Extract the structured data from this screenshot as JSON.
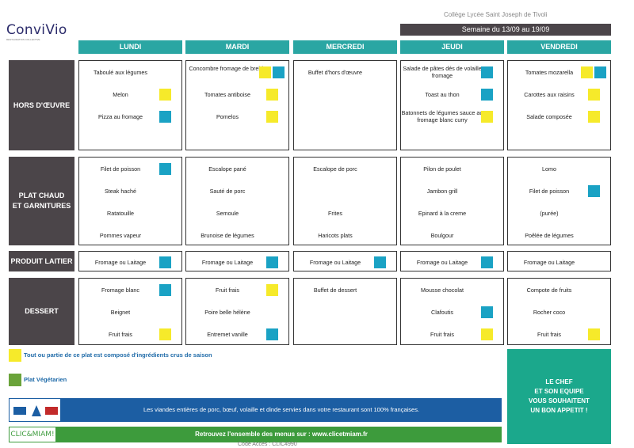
{
  "header": {
    "logo": "ConviVio",
    "logo_sub": "RESTAURATION COLLECTIVE",
    "school": "Collège Lycée Saint Joseph de Tivoli",
    "week": "Semaine du 13/09 au 19/09"
  },
  "days": [
    "LUNDI",
    "MARDI",
    "MERCREDI",
    "JEUDI",
    "VENDREDI"
  ],
  "categories": {
    "hors": "HORS D'ŒUVRE",
    "plat_line1": "PLAT CHAUD",
    "plat_line2": "ET GARNITURES",
    "laitier": "PRODUIT LAITIER",
    "dessert": "DESSERT"
  },
  "menu": {
    "hors": [
      [
        {
          "text": "Taboulé aux légumes"
        },
        {
          "text": "Melon",
          "icon": "sun"
        },
        {
          "text": "Pizza au fromage",
          "icon": "veg-pot"
        }
      ],
      [
        {
          "text": "Concombre fromage de brebis",
          "icon": "sun+veg-pot"
        },
        {
          "text": "Tomates antiboise",
          "icon": "sun"
        },
        {
          "text": "Pomelos",
          "icon": "sun"
        }
      ],
      [
        {
          "text": "Buffet d'hors d'œuvre"
        }
      ],
      [
        {
          "text": "Salade de pâtes dés de volaille fromage",
          "icon": "veg-pot"
        },
        {
          "text": "Toast au thon",
          "icon": "fish"
        },
        {
          "text": "Batonnets de légumes sauce au fromage blanc curry",
          "icon": "sun"
        }
      ],
      [
        {
          "text": "Tomates mozarella",
          "icon": "sun+veg-pot"
        },
        {
          "text": "Carottes aux raisins",
          "icon": "sun"
        },
        {
          "text": "Salade composée",
          "icon": "sun"
        }
      ]
    ],
    "plat": [
      [
        {
          "text": "Filet de poisson",
          "icon": "fish"
        },
        {
          "text": "Steak haché"
        },
        {
          "text": "Ratatouille"
        },
        {
          "text": "Pommes vapeur"
        }
      ],
      [
        {
          "text": "Escalope pané"
        },
        {
          "text": "Sauté de porc"
        },
        {
          "text": "Semoule"
        },
        {
          "text": "Brunoise de légumes"
        }
      ],
      [
        {
          "text": "Escalope de porc"
        },
        {
          "text": ""
        },
        {
          "text": "Frites"
        },
        {
          "text": "Haricots plats"
        }
      ],
      [
        {
          "text": "Pilon de poulet"
        },
        {
          "text": "Jambon grill"
        },
        {
          "text": "Epinard à la creme"
        },
        {
          "text": "Boulgour"
        }
      ],
      [
        {
          "text": "Lomo"
        },
        {
          "text": "Filet de poisson",
          "icon": "fish"
        },
        {
          "text": "(purée)"
        },
        {
          "text": "Poêlée de légumes"
        }
      ]
    ],
    "laitier": [
      [
        {
          "text": "Fromage ou Laitage",
          "icon": "veg-pot"
        }
      ],
      [
        {
          "text": "Fromage ou Laitage",
          "icon": "veg-pot"
        }
      ],
      [
        {
          "text": "Fromage ou Laitage",
          "icon": "veg-pot"
        }
      ],
      [
        {
          "text": "Fromage ou Laitage",
          "icon": "veg-pot"
        }
      ],
      [
        {
          "text": "Fromage ou Laitage"
        }
      ]
    ],
    "dessert": [
      [
        {
          "text": "Fromage blanc",
          "icon": "veg-pot"
        },
        {
          "text": "Beignet"
        },
        {
          "text": "Fruit frais",
          "icon": "sun"
        }
      ],
      [
        {
          "text": "Fruit frais",
          "icon": "sun"
        },
        {
          "text": "Poire belle hélène"
        },
        {
          "text": "Entremet vanille",
          "icon": "veg-pot"
        }
      ],
      [
        {
          "text": "Buffet de dessert"
        }
      ],
      [
        {
          "text": "Mousse chocolat"
        },
        {
          "text": "Clafoutis",
          "icon": "veg-pot"
        },
        {
          "text": "Fruit frais",
          "icon": "sun"
        }
      ],
      [
        {
          "text": "Compote de fruits"
        },
        {
          "text": "Rocher coco"
        },
        {
          "text": "Fruit frais",
          "icon": "sun"
        }
      ]
    ]
  },
  "legend": {
    "sun": "Tout ou partie de ce plat est composé d'ingrédients crus de saison",
    "veg": "Plat Végétarien"
  },
  "chef": [
    "LE CHEF",
    "ET SON EQUIPE",
    "VOUS SOUHAITENT",
    "UN BON APPETIT !"
  ],
  "footer": {
    "viandes": "Les viandes entières de porc, bœuf, volaille et dinde servies dans votre restaurant sont 100% françaises.",
    "clic": "CLIC&MIAM!",
    "menus": "Retrouvez l'ensemble des menus sur : www.clicetmiam.fr",
    "code": "Code Accès : CLIC4990"
  },
  "colors": {
    "teal": "#2aa6a3",
    "dark": "#4b4549",
    "sun": "#f6ea2a",
    "pot": "#1aa2c4",
    "green": "#1ba88c",
    "blue": "#1c5ea3"
  }
}
